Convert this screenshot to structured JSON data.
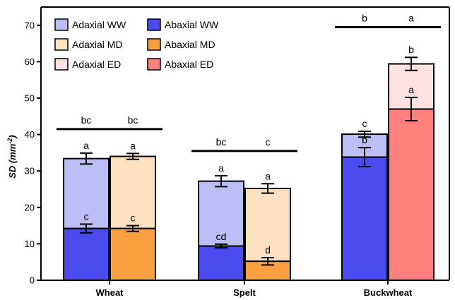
{
  "chart_data": {
    "type": "bar",
    "ylabel_main": "SD",
    "ylabel_unit": "mm",
    "ylabel_exponent": "-2",
    "ylim": [
      0,
      75
    ],
    "yticks": [
      0,
      10,
      20,
      30,
      40,
      50,
      60,
      70
    ],
    "categories": [
      "Wheat",
      "Spelt",
      "Buckwheat"
    ],
    "colors": {
      "adaxial_ww": "#bdbdf5",
      "adaxial_md": "#fde0c0",
      "adaxial_ed": "#fde0e0",
      "abaxial_ww": "#4a4aee",
      "abaxial_md": "#f8a040",
      "abaxial_ed": "#ff7f7f"
    },
    "legend": [
      {
        "label": "Adaxial WW",
        "color_key": "adaxial_ww"
      },
      {
        "label": "Abaxial WW",
        "color_key": "abaxial_ww"
      },
      {
        "label": "Adaxial MD",
        "color_key": "adaxial_md"
      },
      {
        "label": "Abaxial MD",
        "color_key": "abaxial_md"
      },
      {
        "label": "Adaxial ED",
        "color_key": "adaxial_ed"
      },
      {
        "label": "Abaxial ED",
        "color_key": "abaxial_ed"
      }
    ],
    "groups": [
      {
        "category": "Wheat",
        "bars": [
          {
            "treatment": "WW",
            "abaxial": 14.2,
            "abaxial_err": 1.2,
            "abaxial_letter": "c",
            "total": 33.4,
            "total_err": 1.5,
            "total_letter": "a",
            "top_letter": "bc",
            "abaxial_color": "abaxial_ww",
            "adaxial_color": "adaxial_ww"
          },
          {
            "treatment": "MD",
            "abaxial": 14.2,
            "abaxial_err": 0.8,
            "abaxial_letter": "c",
            "total": 34.0,
            "total_err": 0.8,
            "total_letter": "a",
            "top_letter": "bc",
            "abaxial_color": "abaxial_md",
            "adaxial_color": "adaxial_md"
          }
        ],
        "top_line_y": 41.5
      },
      {
        "category": "Spelt",
        "bars": [
          {
            "treatment": "WW",
            "abaxial": 9.4,
            "abaxial_err": 0.5,
            "abaxial_letter": "cd",
            "total": 27.2,
            "total_err": 1.5,
            "total_letter": "a",
            "top_letter": "bc",
            "abaxial_color": "abaxial_ww",
            "adaxial_color": "adaxial_ww"
          },
          {
            "treatment": "ED",
            "abaxial": 5.2,
            "abaxial_err": 1.0,
            "abaxial_letter": "d",
            "total": 25.2,
            "total_err": 1.3,
            "total_letter": "a",
            "top_letter": "c",
            "abaxial_color": "abaxial_md",
            "adaxial_color": "adaxial_md"
          }
        ],
        "top_line_y": 35.5
      },
      {
        "category": "Buckwheat",
        "bars": [
          {
            "treatment": "WW",
            "abaxial": 33.8,
            "abaxial_err": 2.6,
            "abaxial_letter": "b",
            "total": 40.1,
            "total_err": 0.8,
            "total_letter": "c",
            "top_letter": "b",
            "abaxial_color": "abaxial_ww",
            "adaxial_color": "adaxial_ww"
          },
          {
            "treatment": "ED",
            "abaxial": 47.0,
            "abaxial_err": 3.2,
            "abaxial_letter": "a",
            "total": 59.4,
            "total_err": 1.8,
            "total_letter": "b",
            "top_letter": "a",
            "abaxial_color": "abaxial_ed",
            "adaxial_color": "adaxial_ed"
          }
        ],
        "top_line_y": 69.5
      }
    ]
  }
}
